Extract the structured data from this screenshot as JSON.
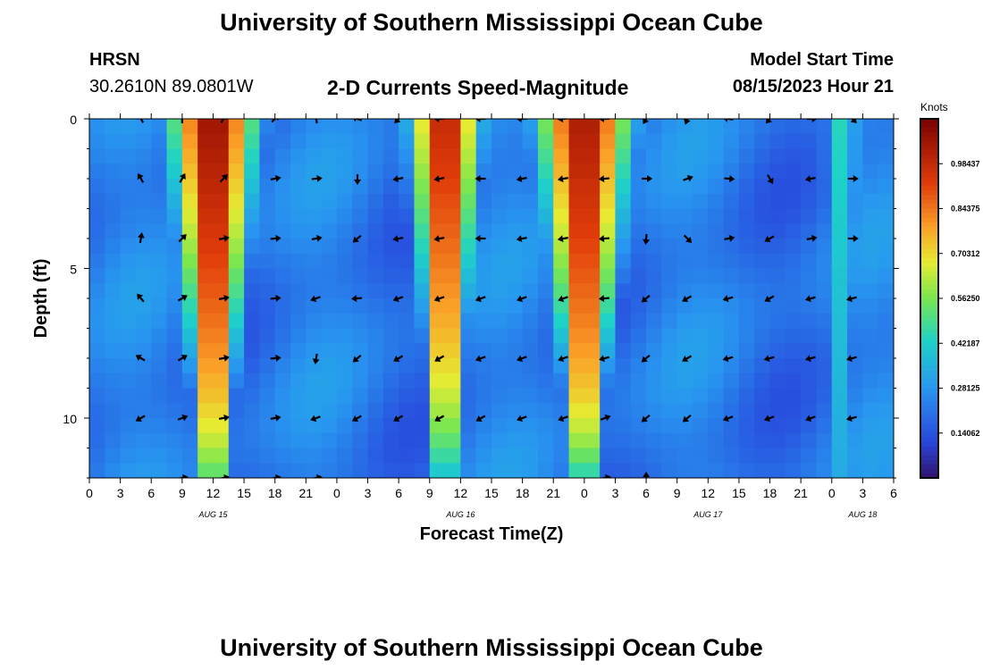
{
  "header": {
    "title": "University of Southern Mississippi Ocean Cube",
    "station_name": "HRSN",
    "coords": "30.2610N  89.0801W",
    "plot_title": "2-D Currents Speed-Magnitude",
    "model_start_label": "Model Start Time",
    "model_start_value": "08/15/2023 Hour 21"
  },
  "footer": {
    "title": "University of Southern Mississippi Ocean Cube"
  },
  "chart_data": {
    "type": "heatmap",
    "title": "2-D Currents Speed-Magnitude",
    "xlabel": "Forecast Time(Z)",
    "ylabel": "Depth (ft)",
    "x_ticks": [
      "0",
      "3",
      "6",
      "9",
      "12",
      "15",
      "18",
      "21",
      "0",
      "3",
      "6",
      "9",
      "12",
      "15",
      "18",
      "21",
      "0",
      "3",
      "6",
      "9",
      "12",
      "15",
      "18",
      "21",
      "0",
      "3",
      "6"
    ],
    "x_range_hours": [
      0,
      78
    ],
    "date_labels": [
      {
        "label": "AUG 15",
        "hour": 12
      },
      {
        "label": "AUG 16",
        "hour": 36
      },
      {
        "label": "AUG 17",
        "hour": 60
      },
      {
        "label": "AUG 18",
        "hour": 75
      }
    ],
    "y_ticks": [
      0,
      5,
      10
    ],
    "ylim": [
      0,
      12
    ],
    "colorbar": {
      "label": "Knots",
      "min": 0.0,
      "max": 1.125,
      "ticks": [
        0.98437,
        0.84375,
        0.70312,
        0.5625,
        0.42187,
        0.28125,
        0.14062
      ],
      "tick_labels": [
        "0.98437",
        "0.84375",
        "0.70312",
        "0.56250",
        "0.42187",
        "0.28125",
        "0.14062"
      ]
    },
    "features": [
      {
        "center_hour": 12,
        "half_width": 5.5,
        "peak": 1.08,
        "narrow_with_depth": 0.75
      },
      {
        "center_hour": 34.5,
        "half_width": 4.5,
        "peak": 1.02,
        "narrow_with_depth": 0.75
      },
      {
        "center_hour": 48,
        "half_width": 6,
        "peak": 1.05,
        "narrow_with_depth": 0.8
      },
      {
        "center_hour": 73,
        "half_width": 2.5,
        "peak": 0.45,
        "narrow_with_depth": 0.2
      }
    ],
    "background_speed": 0.22,
    "arrow_depths": [
      0,
      2,
      4,
      6,
      8,
      10,
      12
    ],
    "arrow_hours": [
      5,
      9,
      13,
      18,
      22,
      26,
      30,
      34,
      38,
      42,
      46,
      50,
      54,
      58,
      62,
      66,
      70,
      74
    ],
    "arrows": [
      [
        120,
        90,
        60,
        45,
        100,
        160,
        225,
        180,
        180,
        180,
        185,
        180,
        240,
        250,
        170,
        230,
        0,
        315
      ],
      [
        120,
        60,
        45,
        10,
        5,
        270,
        190,
        190,
        180,
        190,
        190,
        185,
        0,
        20,
        355,
        300,
        190,
        0
      ],
      [
        80,
        45,
        10,
        5,
        10,
        220,
        190,
        190,
        180,
        190,
        190,
        185,
        265,
        315,
        10,
        210,
        10,
        0
      ],
      [
        130,
        30,
        10,
        5,
        200,
        185,
        200,
        200,
        200,
        200,
        200,
        185,
        220,
        210,
        195,
        210,
        195,
        195
      ],
      [
        150,
        30,
        10,
        5,
        260,
        220,
        210,
        210,
        200,
        200,
        200,
        195,
        220,
        210,
        195,
        195,
        195,
        195
      ],
      [
        210,
        20,
        10,
        10,
        200,
        210,
        210,
        210,
        210,
        200,
        200,
        20,
        220,
        220,
        200,
        200,
        200,
        195
      ],
      [
        null,
        10,
        10,
        10,
        10,
        null,
        null,
        null,
        null,
        null,
        null,
        10,
        90,
        null,
        null,
        null,
        null,
        null
      ]
    ]
  }
}
